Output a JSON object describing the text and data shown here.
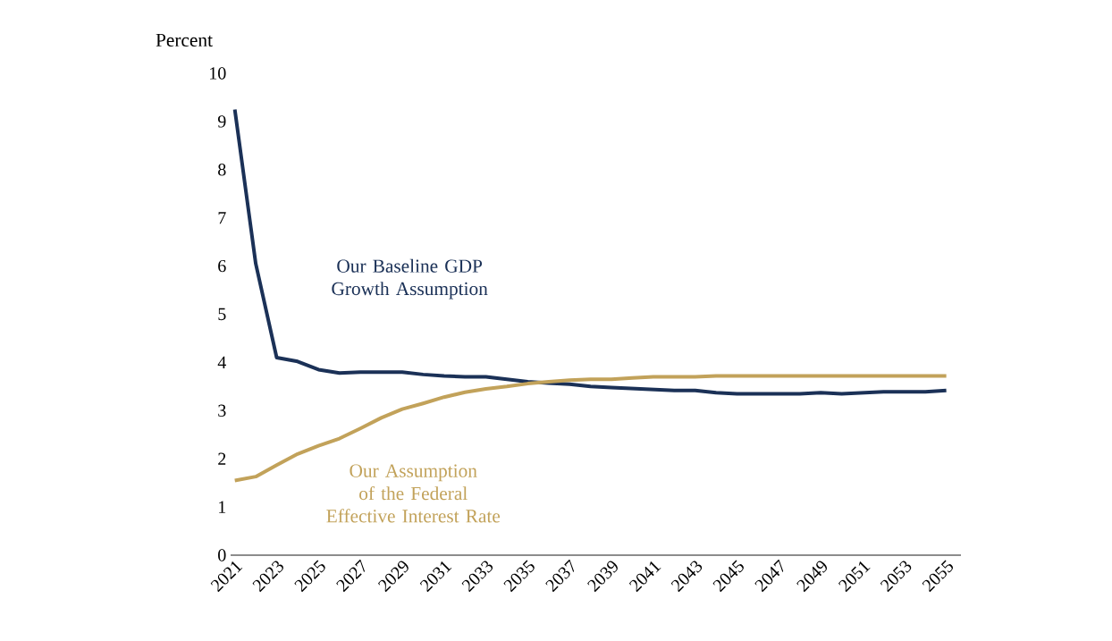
{
  "chart_data": {
    "type": "line",
    "ylabel": "Percent",
    "x": [
      2021,
      2022,
      2023,
      2024,
      2025,
      2026,
      2027,
      2028,
      2029,
      2030,
      2031,
      2032,
      2033,
      2034,
      2035,
      2036,
      2037,
      2038,
      2039,
      2040,
      2041,
      2042,
      2043,
      2044,
      2045,
      2046,
      2047,
      2048,
      2049,
      2050,
      2051,
      2052,
      2053,
      2054,
      2055
    ],
    "series": [
      {
        "name": "Our Baseline GDP Growth Assumption",
        "color": "#1b3157",
        "values": [
          9.25,
          6.05,
          4.1,
          4.02,
          3.85,
          3.78,
          3.8,
          3.8,
          3.8,
          3.75,
          3.72,
          3.7,
          3.7,
          3.65,
          3.6,
          3.57,
          3.55,
          3.5,
          3.48,
          3.46,
          3.44,
          3.42,
          3.42,
          3.37,
          3.35,
          3.35,
          3.35,
          3.35,
          3.37,
          3.35,
          3.37,
          3.39,
          3.39,
          3.39,
          3.42
        ]
      },
      {
        "name": "Our Assumption of the Federal Effective Interest Rate",
        "color": "#c2a25a",
        "values": [
          1.55,
          1.63,
          1.87,
          2.1,
          2.27,
          2.42,
          2.63,
          2.85,
          3.03,
          3.15,
          3.28,
          3.38,
          3.45,
          3.5,
          3.56,
          3.6,
          3.63,
          3.65,
          3.65,
          3.68,
          3.7,
          3.7,
          3.7,
          3.72,
          3.72,
          3.72,
          3.72,
          3.72,
          3.72,
          3.72,
          3.72,
          3.72,
          3.72,
          3.72,
          3.72
        ]
      }
    ],
    "xlim": [
      2020.8,
      2055.7
    ],
    "ylim": [
      0,
      10
    ],
    "xticks": [
      2021,
      2023,
      2025,
      2027,
      2029,
      2031,
      2033,
      2035,
      2037,
      2039,
      2041,
      2043,
      2045,
      2047,
      2049,
      2051,
      2053,
      2055
    ],
    "yticks": [
      0,
      1,
      2,
      3,
      4,
      5,
      6,
      7,
      8,
      9,
      10
    ],
    "grid": false,
    "marker": "none",
    "line_style": "solid"
  }
}
